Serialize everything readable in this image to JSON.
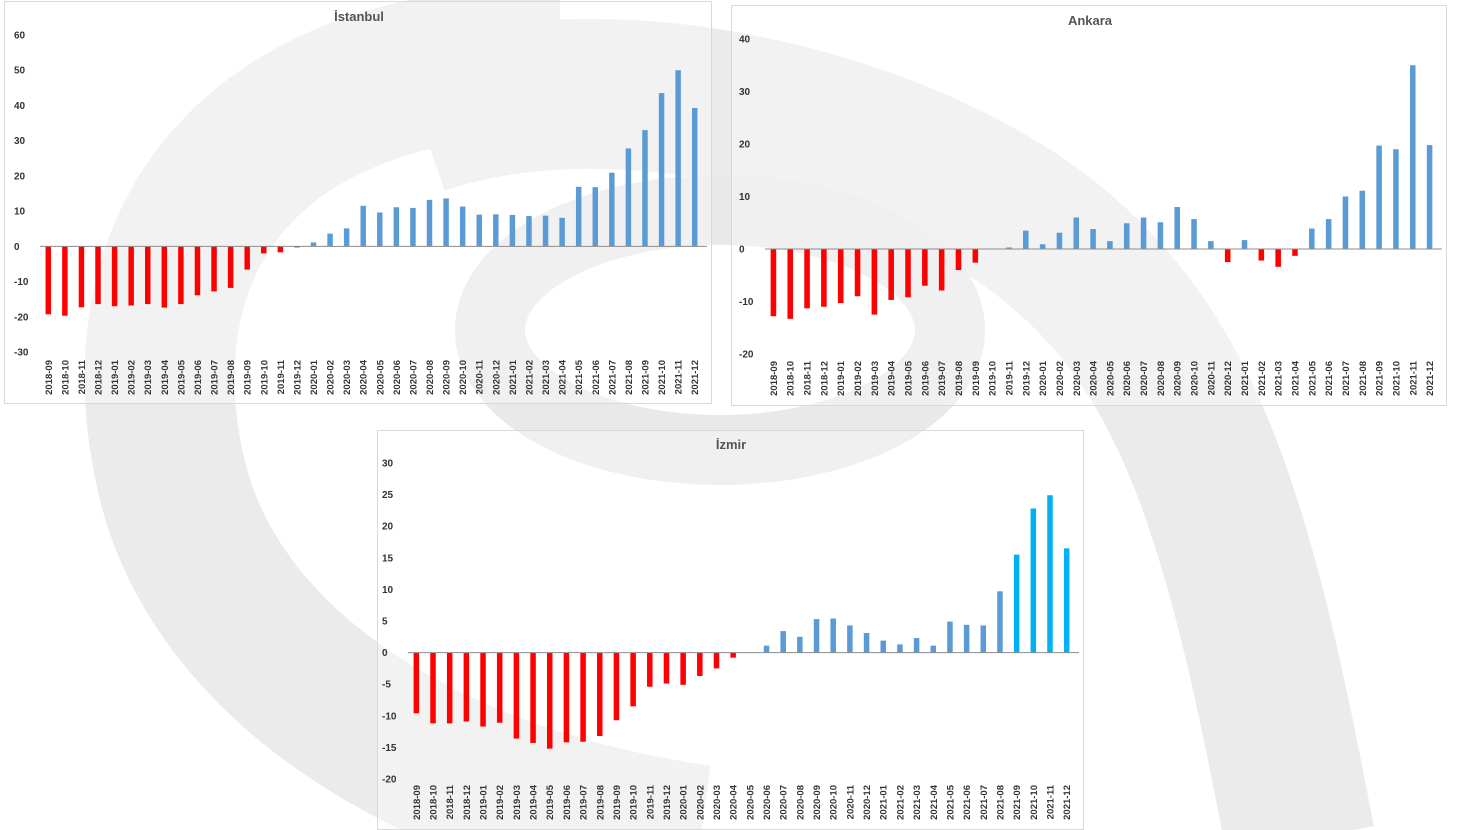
{
  "colors": {
    "negative": "#ff0000",
    "positive": "#5b9bd5",
    "highlight": "#00b0f0",
    "axis": "#8c8c8c",
    "watermark": "#e6e6e6"
  },
  "chart_data": [
    {
      "type": "bar",
      "title": "İstanbul",
      "xlabel": "",
      "ylabel": "",
      "ylim": [
        -30,
        60
      ],
      "yticks": [
        60,
        50,
        40,
        30,
        20,
        10,
        0,
        -10,
        -20,
        -30
      ],
      "categories": [
        "2018-09",
        "2018-10",
        "2018-11",
        "2018-12",
        "2019-01",
        "2019-02",
        "2019-03",
        "2019-04",
        "2019-05",
        "2019-06",
        "2019-07",
        "2019-08",
        "2019-09",
        "2019-10",
        "2019-11",
        "2019-12",
        "2020-01",
        "2020-02",
        "2020-03",
        "2020-04",
        "2020-05",
        "2020-06",
        "2020-07",
        "2020-08",
        "2020-09",
        "2020-10",
        "2020-11",
        "2020-12",
        "2021-01",
        "2021-02",
        "2021-03",
        "2021-04",
        "2021-05",
        "2021-06",
        "2021-07",
        "2021-08",
        "2021-09",
        "2021-10",
        "2021-11",
        "2021-12"
      ],
      "values": [
        -19.3,
        -19.7,
        -17.3,
        -16.4,
        -17,
        -16.8,
        -16.4,
        -17.4,
        -16.4,
        -13.9,
        -12.8,
        -11.8,
        -6.6,
        -2,
        -1.7,
        -0.3,
        1.1,
        3.6,
        5.1,
        11.5,
        9.6,
        11.1,
        10.9,
        13.2,
        13.6,
        11.3,
        9,
        9.1,
        8.9,
        8.6,
        8.7,
        8.1,
        16.9,
        16.8,
        20.9,
        27.8,
        33,
        43.5,
        50,
        39.3
      ],
      "grid": false
    },
    {
      "type": "bar",
      "title": "Ankara",
      "xlabel": "",
      "ylabel": "",
      "ylim": [
        -20,
        40
      ],
      "yticks": [
        40,
        30,
        20,
        10,
        0,
        -10,
        -20
      ],
      "categories": [
        "2018-09",
        "2018-10",
        "2018-11",
        "2018-12",
        "2019-01",
        "2019-02",
        "2019-03",
        "2019-04",
        "2019-05",
        "2019-06",
        "2019-07",
        "2019-08",
        "2019-09",
        "2019-10",
        "2019-11",
        "2019-12",
        "2020-01",
        "2020-02",
        "2020-03",
        "2020-04",
        "2020-05",
        "2020-06",
        "2020-07",
        "2020-08",
        "2020-09",
        "2020-10",
        "2020-11",
        "2020-12",
        "2021-01",
        "2021-02",
        "2021-03",
        "2021-04",
        "2021-05",
        "2021-06",
        "2021-07",
        "2021-08",
        "2021-09",
        "2021-10",
        "2021-11",
        "2021-12"
      ],
      "values": [
        -12.8,
        -13.3,
        -11.3,
        -11,
        -10.3,
        -9,
        -12.5,
        -9.7,
        -9.2,
        -7,
        -7.9,
        -4,
        -2.6,
        0,
        0.3,
        3.5,
        0.9,
        3.1,
        6,
        3.8,
        1.5,
        4.9,
        6,
        5.1,
        8,
        5.7,
        1.5,
        -2.5,
        1.7,
        -2.2,
        -3.4,
        -1.3,
        3.9,
        5.7,
        10,
        11.1,
        19.7,
        19,
        35,
        19.8
      ],
      "grid": false
    },
    {
      "type": "bar",
      "title": "İzmir",
      "xlabel": "",
      "ylabel": "",
      "ylim": [
        -20,
        30
      ],
      "yticks": [
        30,
        25,
        20,
        15,
        10,
        5,
        0,
        -5,
        -10,
        -15,
        -20
      ],
      "categories": [
        "2018-09",
        "2018-10",
        "2018-11",
        "2018-12",
        "2019-01",
        "2019-02",
        "2019-03",
        "2019-04",
        "2019-05",
        "2019-06",
        "2019-07",
        "2019-08",
        "2019-09",
        "2019-10",
        "2019-11",
        "2019-12",
        "2020-01",
        "2020-02",
        "2020-03",
        "2020-04",
        "2020-05",
        "2020-06",
        "2020-07",
        "2020-08",
        "2020-09",
        "2020-10",
        "2020-11",
        "2020-12",
        "2021-01",
        "2021-02",
        "2021-03",
        "2021-04",
        "2021-05",
        "2021-06",
        "2021-07",
        "2021-08",
        "2021-09",
        "2021-10",
        "2021-11",
        "2021-12"
      ],
      "values": [
        -9.6,
        -11.2,
        -11.2,
        -10.9,
        -11.7,
        -11.1,
        -13.6,
        -14.3,
        -15.2,
        -14.2,
        -14.1,
        -13.2,
        -10.7,
        -8.5,
        -5.4,
        -4.9,
        -5.1,
        -3.7,
        -2.5,
        -0.8,
        0,
        1.1,
        3.4,
        2.5,
        5.3,
        5.4,
        4.3,
        3.1,
        1.9,
        1.3,
        2.3,
        1.1,
        4.9,
        4.4,
        4.3,
        9.7,
        15.5,
        22.8,
        24.9,
        16.5
      ],
      "highlight_from": "2021-09",
      "grid": false
    }
  ]
}
